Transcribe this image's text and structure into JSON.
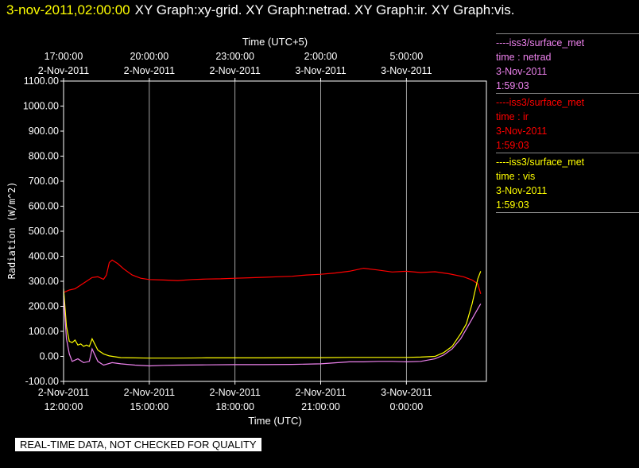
{
  "header": {
    "timestamp": "3-nov-2011,02:00:00",
    "graphs": "XY Graph:xy-grid.  XY Graph:netrad.  XY Graph:ir.  XY Graph:vis."
  },
  "notice": "REAL-TIME DATA, NOT CHECKED FOR QUALITY",
  "legend": [
    {
      "source": "----iss3/surface_met",
      "label": "time : netrad",
      "date": "3-Nov-2011",
      "time": "1:59:03",
      "color": "#ee82ee"
    },
    {
      "source": "----iss3/surface_met",
      "label": "time : ir",
      "date": "3-Nov-2011",
      "time": "1:59:03",
      "color": "#ff0000"
    },
    {
      "source": "----iss3/surface_met",
      "label": "time : vis",
      "date": "3-Nov-2011",
      "time": "1:59:03",
      "color": "#ffff00"
    }
  ],
  "chart_data": {
    "type": "line",
    "xlabel": "Time (UTC)",
    "x2label": "Time (UTC+5)",
    "ylabel": "Radiation (W/m^2)",
    "ylim": [
      -100,
      1100
    ],
    "xlim_hours": [
      0,
      14.8
    ],
    "grid": true,
    "y_ticks": [
      "1100.00",
      "1000.00",
      "900.00",
      "800.00",
      "700.00",
      "600.00",
      "500.00",
      "400.00",
      "300.00",
      "200.00",
      "100.00",
      "0.00",
      "-100.00"
    ],
    "y_tick_values": [
      1100,
      1000,
      900,
      800,
      700,
      600,
      500,
      400,
      300,
      200,
      100,
      0,
      -100
    ],
    "x_ticks": [
      {
        "hour": 0,
        "date": "2-Nov-2011",
        "time": "12:00:00"
      },
      {
        "hour": 3,
        "date": "2-Nov-2011",
        "time": "15:00:00"
      },
      {
        "hour": 6,
        "date": "2-Nov-2011",
        "time": "18:00:00"
      },
      {
        "hour": 9,
        "date": "2-Nov-2011",
        "time": "21:00:00"
      },
      {
        "hour": 12,
        "date": "3-Nov-2011",
        "time": "0:00:00"
      }
    ],
    "x2_ticks": [
      {
        "hour": 0,
        "time": "17:00:00",
        "date": "2-Nov-2011"
      },
      {
        "hour": 3,
        "time": "20:00:00",
        "date": "2-Nov-2011"
      },
      {
        "hour": 6,
        "time": "23:00:00",
        "date": "2-Nov-2011"
      },
      {
        "hour": 9,
        "time": "2:00:00",
        "date": "3-Nov-2011"
      },
      {
        "hour": 12,
        "time": "5:00:00",
        "date": "3-Nov-2011"
      }
    ],
    "series": [
      {
        "name": "ir",
        "color": "#ff0000",
        "x": [
          0,
          0.2,
          0.4,
          0.6,
          0.8,
          1.0,
          1.2,
          1.4,
          1.5,
          1.6,
          1.7,
          1.9,
          2.1,
          2.4,
          2.7,
          3.0,
          3.5,
          4.0,
          4.5,
          5.0,
          5.5,
          6.0,
          6.5,
          7.0,
          7.5,
          8.0,
          8.5,
          9.0,
          9.5,
          10.0,
          10.5,
          11.0,
          11.5,
          12.0,
          12.5,
          13.0,
          13.5,
          14.0,
          14.3,
          14.5,
          14.6
        ],
        "y": [
          255,
          265,
          270,
          285,
          300,
          315,
          318,
          308,
          325,
          375,
          385,
          370,
          350,
          325,
          312,
          307,
          305,
          303,
          307,
          309,
          310,
          312,
          314,
          316,
          318,
          320,
          325,
          328,
          333,
          340,
          352,
          345,
          337,
          340,
          335,
          338,
          330,
          318,
          305,
          290,
          250
        ]
      },
      {
        "name": "vis",
        "color": "#ffff00",
        "x": [
          0,
          0.1,
          0.2,
          0.3,
          0.4,
          0.5,
          0.6,
          0.7,
          0.8,
          0.9,
          1.0,
          1.2,
          1.4,
          1.6,
          2.0,
          3.0,
          4.0,
          5.0,
          6.0,
          7.0,
          8.0,
          9.0,
          10.0,
          11.0,
          12.0,
          12.5,
          13.0,
          13.3,
          13.6,
          13.9,
          14.1,
          14.2,
          14.3,
          14.4,
          14.5,
          14.6
        ],
        "y": [
          270,
          120,
          60,
          55,
          65,
          45,
          50,
          40,
          45,
          40,
          70,
          25,
          10,
          2,
          -5,
          -7,
          -7,
          -6,
          -6,
          -6,
          -5,
          -5,
          -4,
          -4,
          -4,
          -3,
          0,
          15,
          40,
          90,
          130,
          170,
          210,
          260,
          310,
          340
        ]
      },
      {
        "name": "netrad",
        "color": "#ee82ee",
        "x": [
          0,
          0.1,
          0.2,
          0.3,
          0.5,
          0.7,
          0.9,
          1.0,
          1.2,
          1.4,
          1.7,
          2.0,
          2.5,
          3.0,
          3.5,
          4.0,
          5.0,
          6.0,
          7.0,
          8.0,
          9.0,
          10.0,
          10.5,
          11.0,
          11.5,
          12.0,
          12.5,
          13.0,
          13.3,
          13.6,
          13.9,
          14.1,
          14.3,
          14.5,
          14.6
        ],
        "y": [
          240,
          70,
          10,
          -20,
          -10,
          -25,
          -20,
          30,
          -20,
          -35,
          -25,
          -30,
          -35,
          -38,
          -36,
          -35,
          -34,
          -33,
          -33,
          -32,
          -30,
          -22,
          -22,
          -20,
          -20,
          -22,
          -20,
          -10,
          5,
          30,
          70,
          110,
          150,
          190,
          210
        ]
      }
    ]
  }
}
